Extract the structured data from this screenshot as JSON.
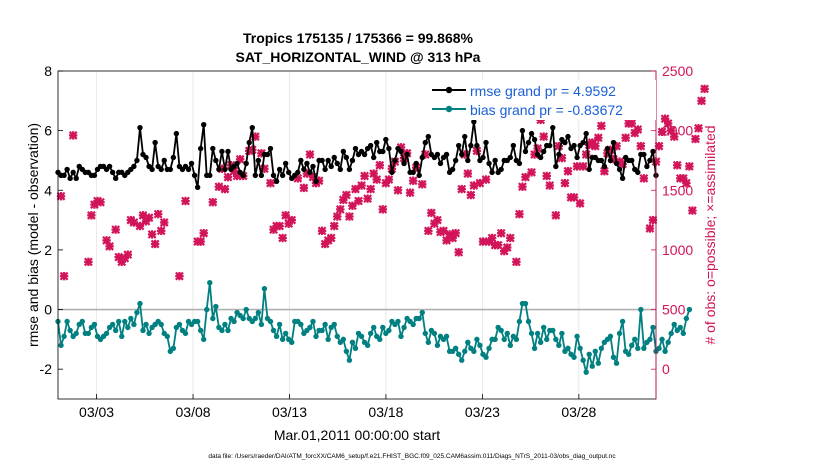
{
  "chart_data": {
    "type": "line",
    "title_line1": "Tropics 175135 / 175366 = 99.868%",
    "title_line2": "SAT_HORIZONTAL_WIND @ 313 hPa",
    "xlabel": "Mar.01,2011 00:00:00 start",
    "ylabel_left": "rmse and bias (model - observation)",
    "ylabel_right": "# of obs: o=possible; ×=assimilated",
    "footnote": "data file: /Users/raeder/DAI/ATM_forcXX/CAM6_setup/f.e21.FHIST_BGC.f09_025.CAM6assim.011/Diags_NTrS_2011-03/obs_diag_output.nc",
    "x_ticks": [
      {
        "day": 3,
        "label": "03/03"
      },
      {
        "day": 8,
        "label": "03/08"
      },
      {
        "day": 13,
        "label": "03/13"
      },
      {
        "day": 18,
        "label": "03/18"
      },
      {
        "day": 23,
        "label": "03/23"
      },
      {
        "day": 28,
        "label": "03/28"
      }
    ],
    "xlim": [
      1,
      32
    ],
    "ylim_left": [
      -3,
      8
    ],
    "ylim_right": [
      -250,
      2500
    ],
    "y_ticks_left": [
      -2,
      0,
      2,
      4,
      6,
      8
    ],
    "y_ticks_right": [
      0,
      500,
      1000,
      1500,
      2000,
      2500
    ],
    "colors": {
      "rmse": "#000000",
      "bias": "#008080",
      "obs": "#d2145a",
      "zero_line": "#b0b0b0",
      "legend_text": "#1a5fd6"
    },
    "legend": {
      "position": "top-right",
      "entries": [
        "rmse grand pr = 4.9592",
        "bias grand pr = -0.83672"
      ]
    },
    "series": [
      {
        "name": "rmse",
        "axis": "left",
        "values": [
          4.6,
          4.5,
          4.5,
          4.7,
          4.4,
          4.6,
          4.4,
          4.8,
          4.7,
          4.6,
          4.6,
          4.5,
          4.5,
          4.7,
          4.8,
          4.8,
          4.7,
          4.8,
          4.6,
          4.4,
          4.6,
          4.6,
          4.5,
          4.6,
          4.7,
          4.8,
          5.0,
          6.1,
          5.2,
          5.1,
          4.8,
          4.7,
          5.6,
          4.8,
          4.7,
          5.0,
          4.7,
          4.7,
          5.1,
          5.9,
          4.8,
          4.7,
          4.8,
          4.7,
          4.9,
          4.5,
          4.1,
          5.4,
          6.2,
          4.5,
          4.5,
          5.4,
          5.0,
          4.7,
          5.3,
          4.7,
          5.3,
          4.7,
          4.8,
          4.9,
          4.6,
          4.5,
          4.9,
          5.6,
          6.1,
          4.5,
          5.0,
          4.5,
          5.2,
          5.2,
          5.4,
          4.5,
          4.3,
          4.7,
          4.5,
          4.9,
          4.6,
          4.4,
          4.5,
          4.6,
          5.0,
          4.7,
          4.9,
          4.6,
          4.8,
          4.3,
          5.0,
          5.0,
          4.7,
          5.0,
          4.8,
          5.1,
          4.9,
          4.7,
          5.3,
          5.1,
          4.7,
          5.0,
          5.4,
          5.2,
          5.3,
          5.2,
          5.4,
          5.5,
          5.1,
          5.6,
          5.3,
          5.3,
          5.7,
          5.4,
          4.6,
          5.0,
          5.4,
          5.3,
          4.9,
          5.2,
          4.6,
          4.6,
          4.9,
          4.5,
          5.1,
          5.6,
          5.8,
          5.2,
          5.1,
          5.2,
          4.9,
          5.1,
          5.2,
          4.6,
          4.7,
          5.0,
          5.5,
          5.2,
          5.8,
          5.0,
          5.5,
          6.3,
          5.5,
          5.0,
          5.1,
          5.6,
          4.9,
          4.6,
          5.0,
          4.6,
          4.7,
          5.0,
          5.0,
          5.1,
          5.5,
          5.0,
          4.9,
          6.0,
          5.3,
          5.6,
          5.9,
          5.7,
          5.2,
          5.1,
          5.3,
          5.5,
          5.5,
          6.1,
          4.8,
          5.2,
          5.7,
          5.6,
          5.8,
          5.4,
          5.5,
          5.1,
          5.5,
          5.6,
          5.9,
          4.7,
          5.1,
          5.1,
          5.0,
          5.0,
          4.8,
          5.4,
          5.0,
          5.6,
          4.9,
          4.7,
          4.4,
          5.1,
          5.0,
          5.0,
          4.7,
          4.6,
          5.2,
          5.2,
          4.8,
          5.0,
          5.3,
          4.5
        ]
      },
      {
        "name": "bias",
        "axis": "left",
        "values": [
          -0.4,
          -1.2,
          -0.9,
          -0.4,
          -0.7,
          -0.9,
          -0.8,
          -0.5,
          -0.4,
          -0.8,
          -0.8,
          -0.6,
          -0.5,
          -0.9,
          -1.0,
          -0.9,
          -0.8,
          -0.6,
          -0.5,
          -0.7,
          -0.4,
          -0.9,
          -0.4,
          -0.6,
          -0.3,
          -0.5,
          -0.1,
          0.2,
          -0.7,
          -0.5,
          -0.8,
          -0.6,
          -0.5,
          -0.4,
          -0.5,
          -0.8,
          -0.9,
          -1.4,
          -1.3,
          -0.6,
          -0.5,
          -0.7,
          -0.8,
          -0.4,
          -0.5,
          -0.4,
          -0.4,
          -0.7,
          -1.0,
          0.0,
          0.9,
          -0.3,
          0.1,
          -0.6,
          -0.7,
          -0.5,
          -0.7,
          -0.3,
          -0.4,
          -0.1,
          -0.2,
          -0.3,
          0.0,
          -0.3,
          -0.4,
          -0.3,
          -0.1,
          -0.5,
          0.7,
          -0.3,
          -0.4,
          -0.7,
          -0.9,
          -0.5,
          -1.0,
          -0.8,
          -1.0,
          -1.1,
          -0.4,
          -0.4,
          -0.5,
          -0.8,
          -0.7,
          -0.6,
          -0.4,
          -0.9,
          -0.7,
          -0.7,
          -0.5,
          -1.0,
          -0.6,
          -0.5,
          -0.9,
          -1.1,
          -1.0,
          -1.4,
          -1.7,
          -1.1,
          -1.3,
          -0.8,
          -0.9,
          -1.1,
          -1.2,
          -0.8,
          -0.6,
          -0.9,
          -1.0,
          -0.6,
          -0.8,
          -0.7,
          -0.4,
          -0.5,
          -0.4,
          -0.9,
          -0.6,
          -0.3,
          -0.4,
          -0.5,
          -0.3,
          -0.3,
          -0.1,
          -0.8,
          -1.1,
          -0.7,
          -0.8,
          -1.2,
          -0.9,
          -1.0,
          -0.9,
          -1.4,
          -1.4,
          -1.3,
          -1.5,
          -1.7,
          -1.4,
          -1.1,
          -1.3,
          -1.4,
          -1.0,
          -1.2,
          -1.5,
          -1.6,
          -1.3,
          -1.0,
          -1.0,
          -0.6,
          -0.7,
          -1.0,
          -0.8,
          -1.2,
          -0.9,
          -1.0,
          -0.4,
          0.2,
          0.2,
          -0.4,
          -0.8,
          -1.3,
          -0.8,
          -1.1,
          -0.6,
          -1.0,
          -0.7,
          -0.7,
          -1.0,
          -1.2,
          -0.8,
          -1.4,
          -1.3,
          -1.5,
          -1.6,
          -0.9,
          -1.3,
          -1.7,
          -2.1,
          -1.5,
          -1.9,
          -1.4,
          -1.8,
          -1.3,
          -1.1,
          -1.0,
          -0.9,
          -1.6,
          -1.8,
          -0.8,
          -0.4,
          -1.4,
          -1.5,
          -1.2,
          -1.0,
          -1.3,
          0.0,
          -1.3,
          -1.1,
          -1.0,
          -0.6,
          -1.4,
          -1.3,
          -1.0,
          -1.4,
          -1.1,
          -0.8,
          -0.5,
          -0.7,
          -0.6,
          -0.8,
          -0.3,
          0.0
        ]
      },
      {
        "name": "obs_assimilated",
        "axis": "right",
        "values": [
          null,
          1450,
          780,
          null,
          null,
          1960,
          null,
          null,
          null,
          null,
          900,
          1290,
          1380,
          1410,
          1400,
          null,
          1080,
          1030,
          null,
          1170,
          940,
          900,
          930,
          960,
          1250,
          1230,
          null,
          1200,
          1290,
          1240,
          1270,
          1130,
          1050,
          1300,
          1160,
          1230,
          null,
          null,
          null,
          null,
          780,
          null,
          1410,
          null,
          null,
          null,
          1070,
          1070,
          1140,
          null,
          null,
          1400,
          null,
          1530,
          1680,
          1510,
          1610,
          1710,
          1660,
          1620,
          1760,
          1620,
          null,
          1830,
          1840,
          1950,
          null,
          1810,
          1680,
          null,
          1560,
          1170,
          1200,
          1200,
          1100,
          1290,
          1220,
          1250,
          null,
          1600,
          null,
          1520,
          1640,
          1800,
          1610,
          1560,
          1580,
          1160,
          1050,
          1080,
          1100,
          1200,
          1280,
          1340,
          1420,
          1460,
          1280,
          1370,
          1510,
          1410,
          1540,
          1620,
          1430,
          1510,
          1640,
          1590,
          1710,
          1340,
          1560,
          1590,
          1680,
          1740,
          1500,
          1860,
          1770,
          1810,
          1480,
          1580,
          1690,
          null,
          1550,
          1800,
          1160,
          1310,
          1220,
          1250,
          1150,
          1160,
          1080,
          1130,
          1100,
          1140,
          980,
          1510,
          1800,
          1640,
          1460,
          1540,
          1830,
          1560,
          1070,
          1590,
          1070,
          1100,
          1040,
          1040,
          1140,
          990,
          1020,
          1100,
          null,
          900,
          1300,
          1530,
          1610,
          null,
          1650,
          1800,
          1850,
          2090,
          1950,
          1620,
          1540,
          null,
          1290,
          1870,
          1770,
          1560,
          1660,
          1440,
          1440,
          1700,
          1390,
          1700,
          1800,
          1880,
          1900,
          1870,
          1940,
          2040,
          1660,
          1810,
          1840,
          1760,
          1870,
          1740,
          1720,
          1940,
          2060,
          2060,
          1980,
          2010,
          1870,
          1600,
          null,
          1180,
          1250,
          1740,
          1870,
          1990,
          2100,
          2060,
          2000,
          1950,
          1710,
          1600,
          1600,
          1560,
          1700,
          1330,
          1930,
          2020,
          2250,
          2350
        ]
      }
    ]
  }
}
